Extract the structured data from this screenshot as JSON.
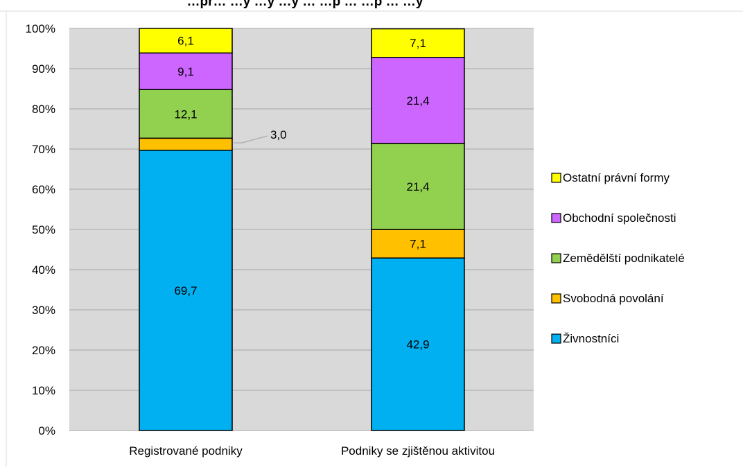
{
  "chart_data": {
    "type": "bar",
    "stacked": true,
    "percent_stacked": true,
    "title": "…pr… …y …y …y … …p … …p … …y",
    "categories": [
      "Registrované podniky",
      "Podniky se zjištěnou aktivitou"
    ],
    "yticks": [
      "0%",
      "10%",
      "20%",
      "30%",
      "40%",
      "50%",
      "60%",
      "70%",
      "80%",
      "90%",
      "100%"
    ],
    "ylim": [
      0,
      100
    ],
    "grid": true,
    "legend_position": "right",
    "series": [
      {
        "name": "Živnostníci",
        "color": "#00b0f0",
        "values": [
          69.7,
          42.9
        ],
        "labels": [
          "69,7",
          "42,9"
        ]
      },
      {
        "name": "Svobodná povolání",
        "color": "#ffc000",
        "values": [
          3.0,
          7.1
        ],
        "labels": [
          "3,0",
          "7,1"
        ]
      },
      {
        "name": "Zemědělští podnikatelé",
        "color": "#92d050",
        "values": [
          12.1,
          21.4
        ],
        "labels": [
          "12,1",
          "21,4"
        ]
      },
      {
        "name": "Obchodní společnosti",
        "color": "#cc66ff",
        "values": [
          9.1,
          21.4
        ],
        "labels": [
          "9,1",
          "21,4"
        ]
      },
      {
        "name": "Ostatní právní formy",
        "color": "#ffff00",
        "values": [
          6.1,
          7.1
        ],
        "labels": [
          "6,1",
          "7,1"
        ]
      }
    ]
  }
}
